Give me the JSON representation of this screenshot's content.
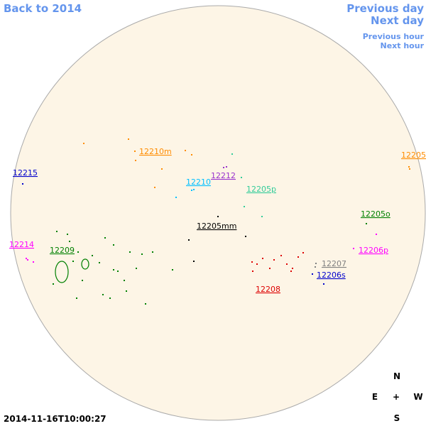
{
  "navigation": {
    "back": "Back to 2014",
    "previous_day": "Previous day",
    "next_day": "Next day",
    "previous_hour": "Previous hour",
    "next_hour": "Next hour"
  },
  "timestamp": "2014-11-16T10:00:27",
  "compass": {
    "north": "N",
    "east": "E",
    "center": "+",
    "west": "W",
    "south": "S"
  },
  "regions": [
    {
      "label": "12210m",
      "color": "#ff8c00"
    },
    {
      "label": "12215",
      "color": "#0000cc"
    },
    {
      "label": "12205",
      "color": "#ff8c00"
    },
    {
      "label": "12212",
      "color": "#9932cc"
    },
    {
      "label": "12210",
      "color": "#00bfff"
    },
    {
      "label": "12205p",
      "color": "#33cc99"
    },
    {
      "label": "12205o",
      "color": "#008000"
    },
    {
      "label": "12205mm",
      "color": "#000000"
    },
    {
      "label": "12214",
      "color": "#ff00ff"
    },
    {
      "label": "12209",
      "color": "#008000"
    },
    {
      "label": "12206p",
      "color": "#ff00ff"
    },
    {
      "label": "12207",
      "color": "#808080"
    },
    {
      "label": "12206s",
      "color": "#0000cc"
    },
    {
      "label": "12208",
      "color": "#dd0000"
    }
  ]
}
